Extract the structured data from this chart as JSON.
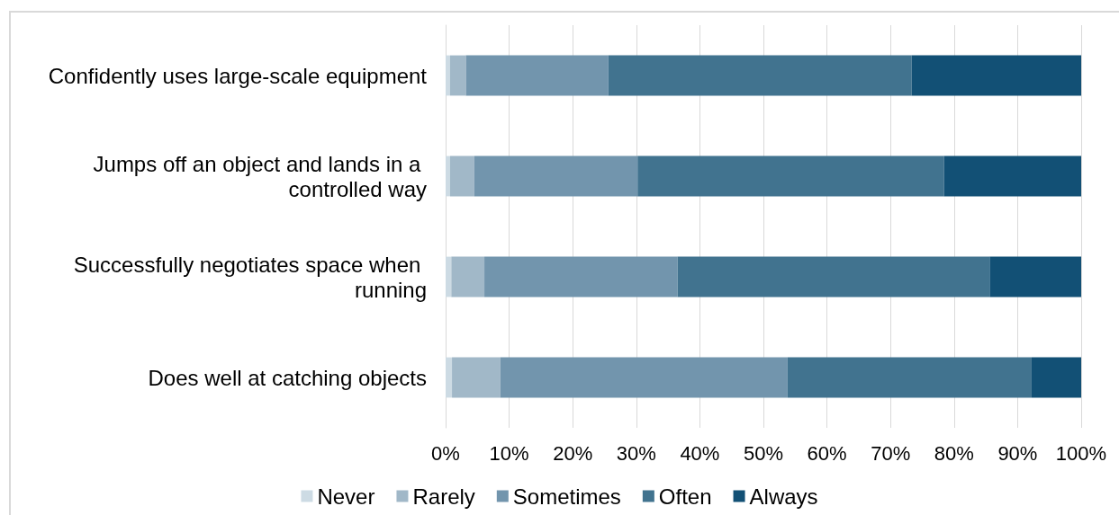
{
  "chart_data": {
    "type": "bar",
    "orientation": "horizontal",
    "stacked": true,
    "categories": [
      "Confidently uses large-scale equipment",
      "Jumps off an object and lands in a controlled way",
      "Successfully negotiates space when running",
      "Does well at catching objects"
    ],
    "series": [
      {
        "name": "Never",
        "color": "#cddbe4",
        "values": [
          0.7,
          0.7,
          0.9,
          1.0
        ]
      },
      {
        "name": "Rarely",
        "color": "#a1b8c8",
        "values": [
          2.5,
          3.8,
          5.2,
          7.6
        ]
      },
      {
        "name": "Sometimes",
        "color": "#7295ad",
        "values": [
          22.4,
          25.7,
          30.4,
          45.2
        ]
      },
      {
        "name": "Often",
        "color": "#41738f",
        "values": [
          47.7,
          48.2,
          49.1,
          38.4
        ]
      },
      {
        "name": "Always",
        "color": "#125075",
        "values": [
          26.8,
          21.6,
          14.4,
          7.8
        ]
      }
    ],
    "xlim": [
      0,
      100
    ],
    "xticks": [
      {
        "value": 0,
        "label": "0%"
      },
      {
        "value": 10,
        "label": "10%"
      },
      {
        "value": 20,
        "label": "20%"
      },
      {
        "value": 30,
        "label": "30%"
      },
      {
        "value": 40,
        "label": "40%"
      },
      {
        "value": 50,
        "label": "50%"
      },
      {
        "value": 60,
        "label": "60%"
      },
      {
        "value": 70,
        "label": "70%"
      },
      {
        "value": 80,
        "label": "80%"
      },
      {
        "value": 90,
        "label": "90%"
      },
      {
        "value": 100,
        "label": "100%"
      }
    ],
    "grid": "x",
    "legend": "bottom"
  }
}
